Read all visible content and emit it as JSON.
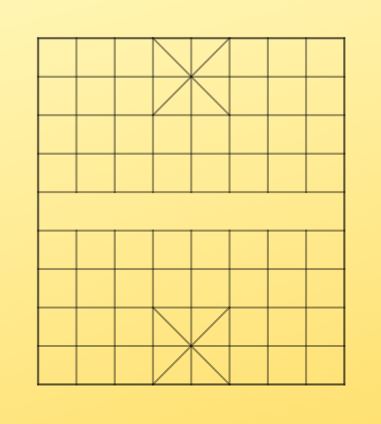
{
  "game": {
    "type": "xiangqi-board",
    "files": 9,
    "ranks": 10,
    "river_text_top": "",
    "river_text_bottom": "",
    "palaces": [
      "top",
      "bottom"
    ],
    "line_color": "#000000",
    "background_colors": [
      "#fff5b3",
      "#ffe172"
    ]
  }
}
